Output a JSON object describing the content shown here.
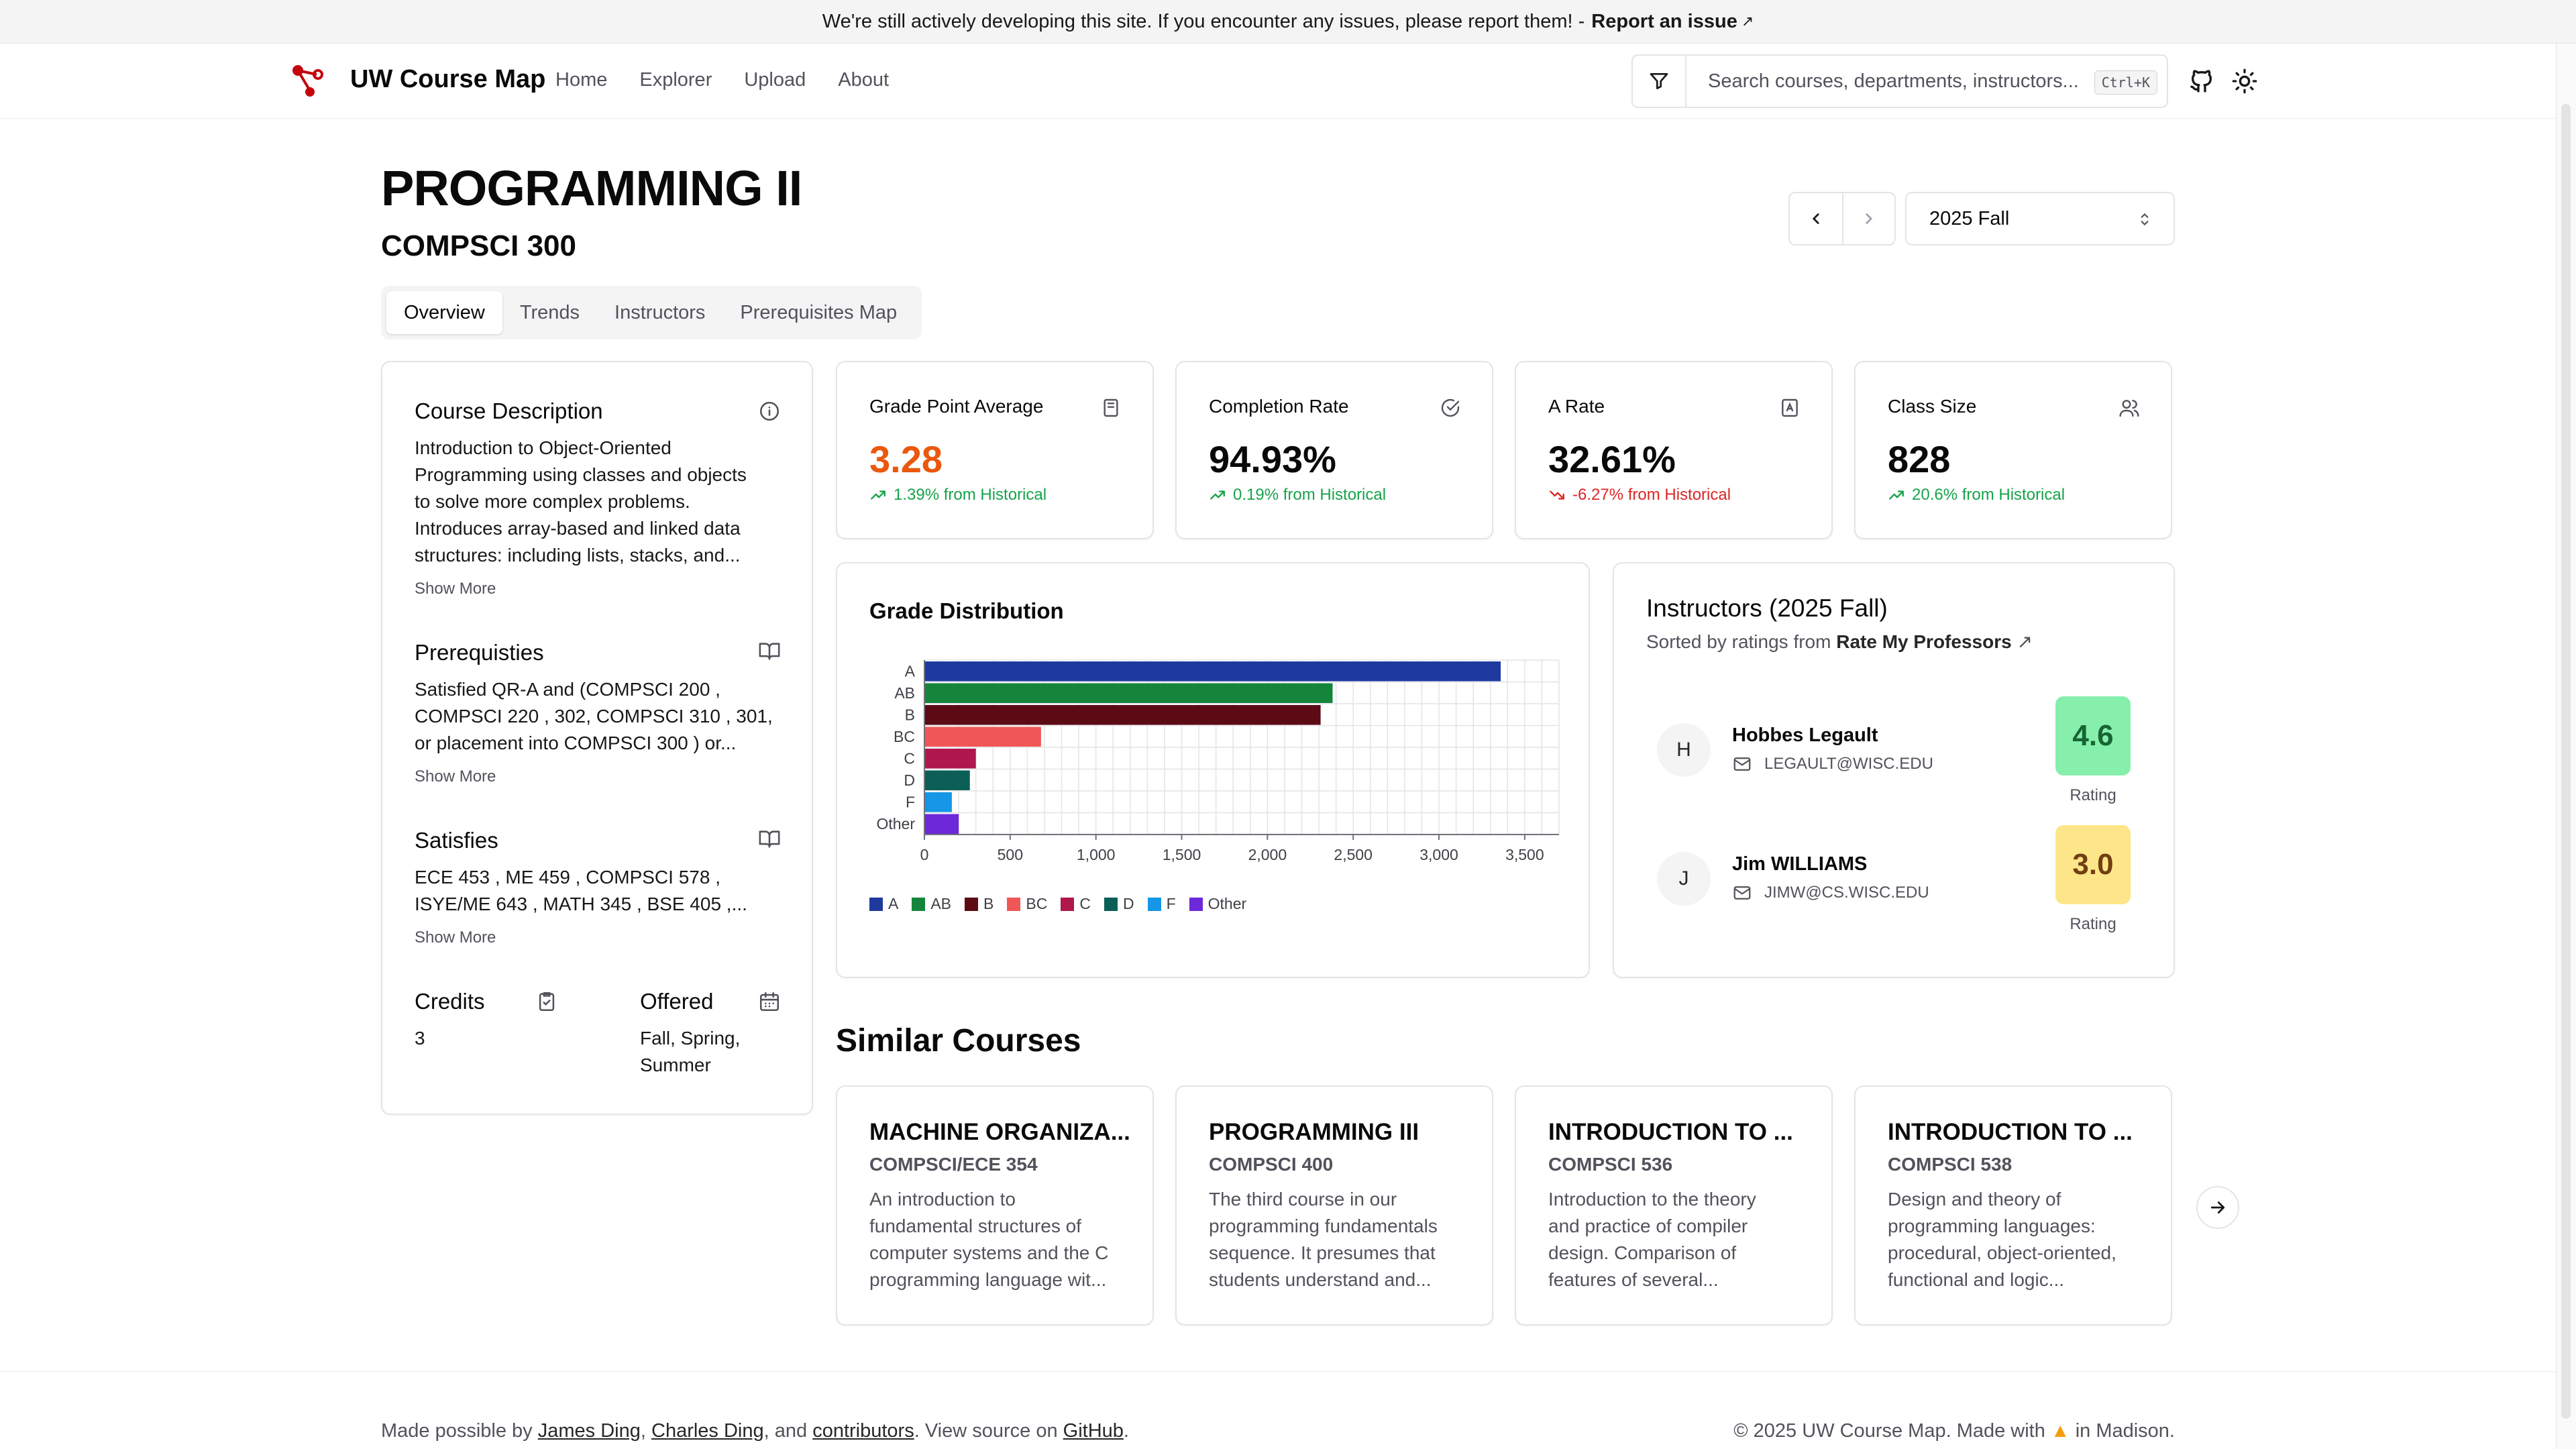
{
  "banner": {
    "text": "We're still actively developing this site. If you encounter any issues, please report them! -",
    "link": "Report an issue",
    "link_icon": "external-link-icon"
  },
  "nav": {
    "brand": "UW Course Map",
    "links": [
      "Home",
      "Explorer",
      "Upload",
      "About"
    ],
    "search_placeholder": "Search courses, departments, instructors...",
    "search_shortcut": "Ctrl+K"
  },
  "course": {
    "title": "PROGRAMMING II",
    "code": "COMPSCI 300"
  },
  "tabs": [
    "Overview",
    "Trends",
    "Instructors",
    "Prerequisites Map"
  ],
  "term": {
    "selected": "2025 Fall"
  },
  "description": {
    "heading": "Course Description",
    "lines": [
      "Introduction to Object-Oriented",
      "Programming using classes and objects",
      "to solve more complex problems.",
      "Introduces array-based and linked data",
      "structures: including lists, stacks, and..."
    ],
    "show_more": "Show More"
  },
  "prerequisites": {
    "heading": "Prerequisties",
    "lines": [
      "Satisfied QR-A and (COMPSCI 200 ,",
      "COMPSCI 220 , 302, COMPSCI 310 , 301,",
      "or placement into COMPSCI 300 ) or..."
    ],
    "show_more": "Show More"
  },
  "satisfies": {
    "heading": "Satisfies",
    "lines": [
      "ECE 453 , ME 459 , COMPSCI 578 ,",
      "ISYE/ME 643 , MATH 345 , BSE 405 ,..."
    ],
    "show_more": "Show More"
  },
  "credits": {
    "heading": "Credits",
    "value": "3"
  },
  "offered": {
    "heading": "Offered",
    "lines": [
      "Fall, Spring,",
      "Summer"
    ]
  },
  "stats": [
    {
      "label": "Grade Point Average",
      "value": "3.28",
      "trend": "1.39% from Historical",
      "direction": "up",
      "value_color": "#ea580c",
      "icon": "notebook-icon"
    },
    {
      "label": "Completion Rate",
      "value": "94.93%",
      "trend": "0.19% from Historical",
      "direction": "up",
      "value_color": "#09090b",
      "icon": "check-circle-icon"
    },
    {
      "label": "A Rate",
      "value": "32.61%",
      "trend": "-6.27% from Historical",
      "direction": "down",
      "value_color": "#09090b",
      "icon": "award-icon"
    },
    {
      "label": "Class Size",
      "value": "828",
      "trend": "20.6% from Historical",
      "direction": "up",
      "value_color": "#09090b",
      "icon": "users-icon"
    }
  ],
  "chart_data": {
    "type": "bar",
    "orientation": "horizontal",
    "title": "Grade Distribution",
    "categories": [
      "A",
      "AB",
      "B",
      "BC",
      "C",
      "D",
      "F",
      "Other"
    ],
    "values": [
      3360,
      2380,
      2310,
      680,
      300,
      265,
      160,
      200
    ],
    "colors": [
      "#1e3a9f",
      "#16853c",
      "#5c0a14",
      "#f05656",
      "#b0174d",
      "#0b5f57",
      "#1596e6",
      "#6d28d9"
    ],
    "xlim": [
      0,
      3700
    ],
    "xticks": [
      0,
      500,
      1000,
      1500,
      2000,
      2500,
      3000,
      3500
    ],
    "xtick_labels": [
      "0",
      "500",
      "1,000",
      "1,500",
      "2,000",
      "2,500",
      "3,000",
      "3,500"
    ],
    "grid": true,
    "legend": "bottom-left"
  },
  "instructors": {
    "title": "Instructors (2025 Fall)",
    "subtitle": "Sorted by ratings from",
    "subtitle_link": "Rate My Professors",
    "items": [
      {
        "initial": "H",
        "name": "Hobbes Legault",
        "email": "LEGAULT@WISC.EDU",
        "rating": "4.6",
        "rating_label": "Rating",
        "rating_bg": "#86efac",
        "rating_fg": "#166534"
      },
      {
        "initial": "J",
        "name": "Jim WILLIAMS",
        "email": "JIMW@CS.WISC.EDU",
        "rating": "3.0",
        "rating_label": "Rating",
        "rating_bg": "#fde68a",
        "rating_fg": "#713f12"
      }
    ]
  },
  "similar": {
    "title": "Similar Courses",
    "items": [
      {
        "title": "MACHINE ORGANIZA...",
        "code": "COMPSCI/ECE 354",
        "lines": [
          "An introduction to",
          "fundamental structures of",
          "computer systems and the C",
          "programming language wit..."
        ]
      },
      {
        "title": "PROGRAMMING III",
        "code": "COMPSCI 400",
        "lines": [
          "The third course in our",
          "programming fundamentals",
          "sequence. It presumes that",
          "students understand and..."
        ]
      },
      {
        "title": "INTRODUCTION TO ...",
        "code": "COMPSCI 536",
        "lines": [
          "Introduction to the theory",
          "and practice of compiler",
          "design. Comparison of",
          "features of several..."
        ]
      },
      {
        "title": "INTRODUCTION TO ...",
        "code": "COMPSCI 538",
        "lines": [
          "Design and theory of",
          "programming languages:",
          "procedural, object-oriented,",
          "functional and logic..."
        ]
      }
    ]
  },
  "footer": {
    "left_prefix": "Made possible by",
    "name1": "James Ding",
    "sep1": ",",
    "name2": "Charles Ding",
    "sep2": ", and",
    "contributors": "contributors",
    "mid": ". View source on",
    "github": "GitHub",
    "end": ".",
    "right_prefix": "© 2025 UW Course Map. Made with",
    "right_suffix": "in Madison."
  }
}
